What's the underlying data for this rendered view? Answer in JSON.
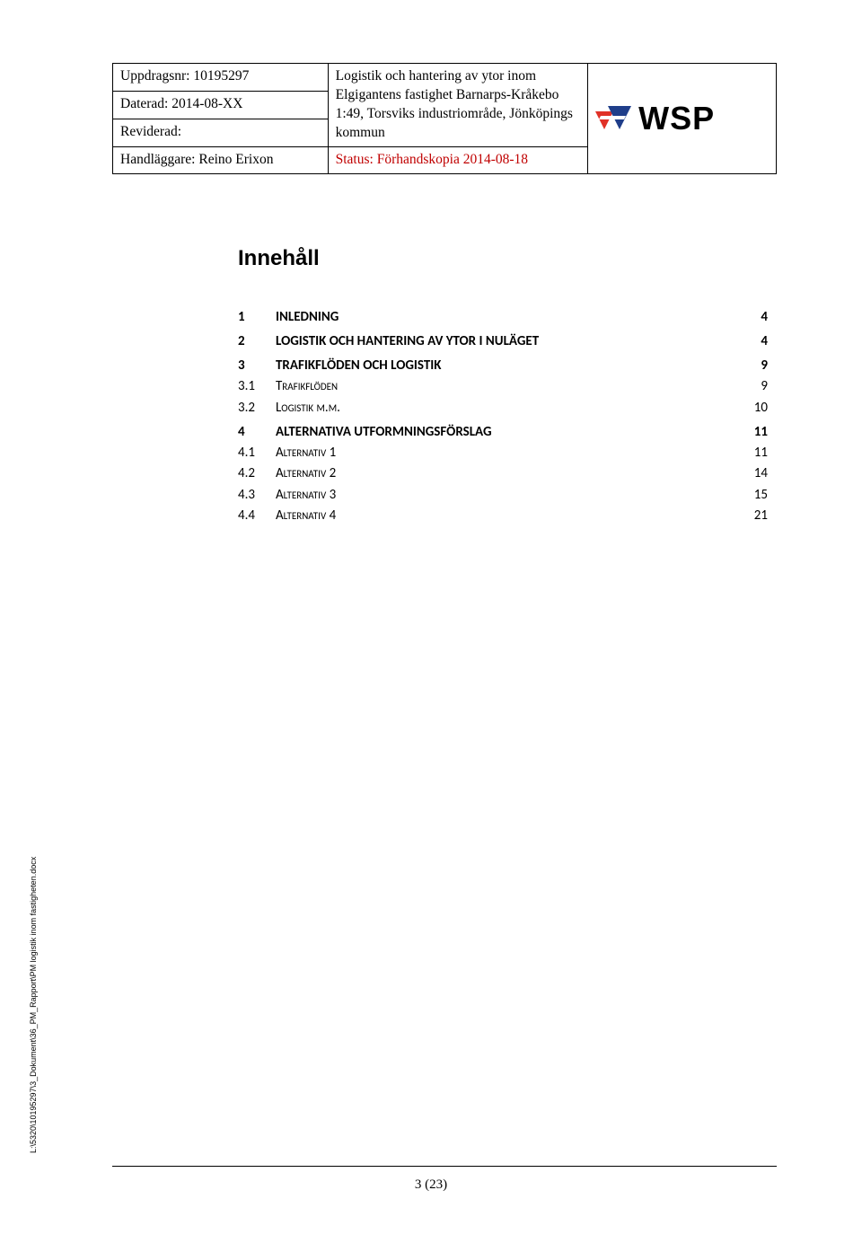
{
  "header": {
    "uppdragsnr_label": "Uppdragsnr: 10195297",
    "daterad": "Daterad: 2014-08-XX",
    "reviderad": "Reviderad:",
    "handlaggare": "Handläggare: Reino Erixon",
    "desc1": "Logistik och hantering av ytor inom Elgigantens fastighet Barnarps-Kråkebo 1:49, Torsviks industriområde, Jönköpings kommun",
    "status": "Status: Förhandskopia 2014-08-18",
    "logo_text": "WSP"
  },
  "toc": {
    "title": "Innehåll",
    "entries": [
      {
        "num": "1",
        "text": "INLEDNING",
        "page": "4",
        "bold": true
      },
      {
        "num": "2",
        "text": "LOGISTIK OCH HANTERING AV YTOR I NULÄGET",
        "page": "4",
        "bold": true
      },
      {
        "num": "3",
        "text": "TRAFIKFLÖDEN OCH LOGISTIK",
        "page": "9",
        "bold": true
      },
      {
        "num": "3.1",
        "text": "Trafikflöden",
        "page": "9",
        "bold": false,
        "smallcaps": true
      },
      {
        "num": "3.2",
        "text": "Logistik m.m.",
        "page": "10",
        "bold": false,
        "smallcaps": true
      },
      {
        "num": "4",
        "text": "ALTERNATIVA UTFORMNINGSFÖRSLAG",
        "page": "11",
        "bold": true
      },
      {
        "num": "4.1",
        "text": "Alternativ 1",
        "page": "11",
        "bold": false,
        "smallcaps": true
      },
      {
        "num": "4.2",
        "text": "Alternativ 2",
        "page": "14",
        "bold": false,
        "smallcaps": true
      },
      {
        "num": "4.3",
        "text": "Alternativ 3",
        "page": "15",
        "bold": false,
        "smallcaps": true
      },
      {
        "num": "4.4",
        "text": "Alternativ 4",
        "page": "21",
        "bold": false,
        "smallcaps": true
      }
    ]
  },
  "side_path": "L:\\5320\\10195297\\3_Dokument\\36_PM_Rapport\\PM logistik inom fastigheten.docx",
  "page_number": "3 (23)",
  "logo_colors": {
    "red": "#e03127",
    "blue": "#1f3e8a"
  }
}
